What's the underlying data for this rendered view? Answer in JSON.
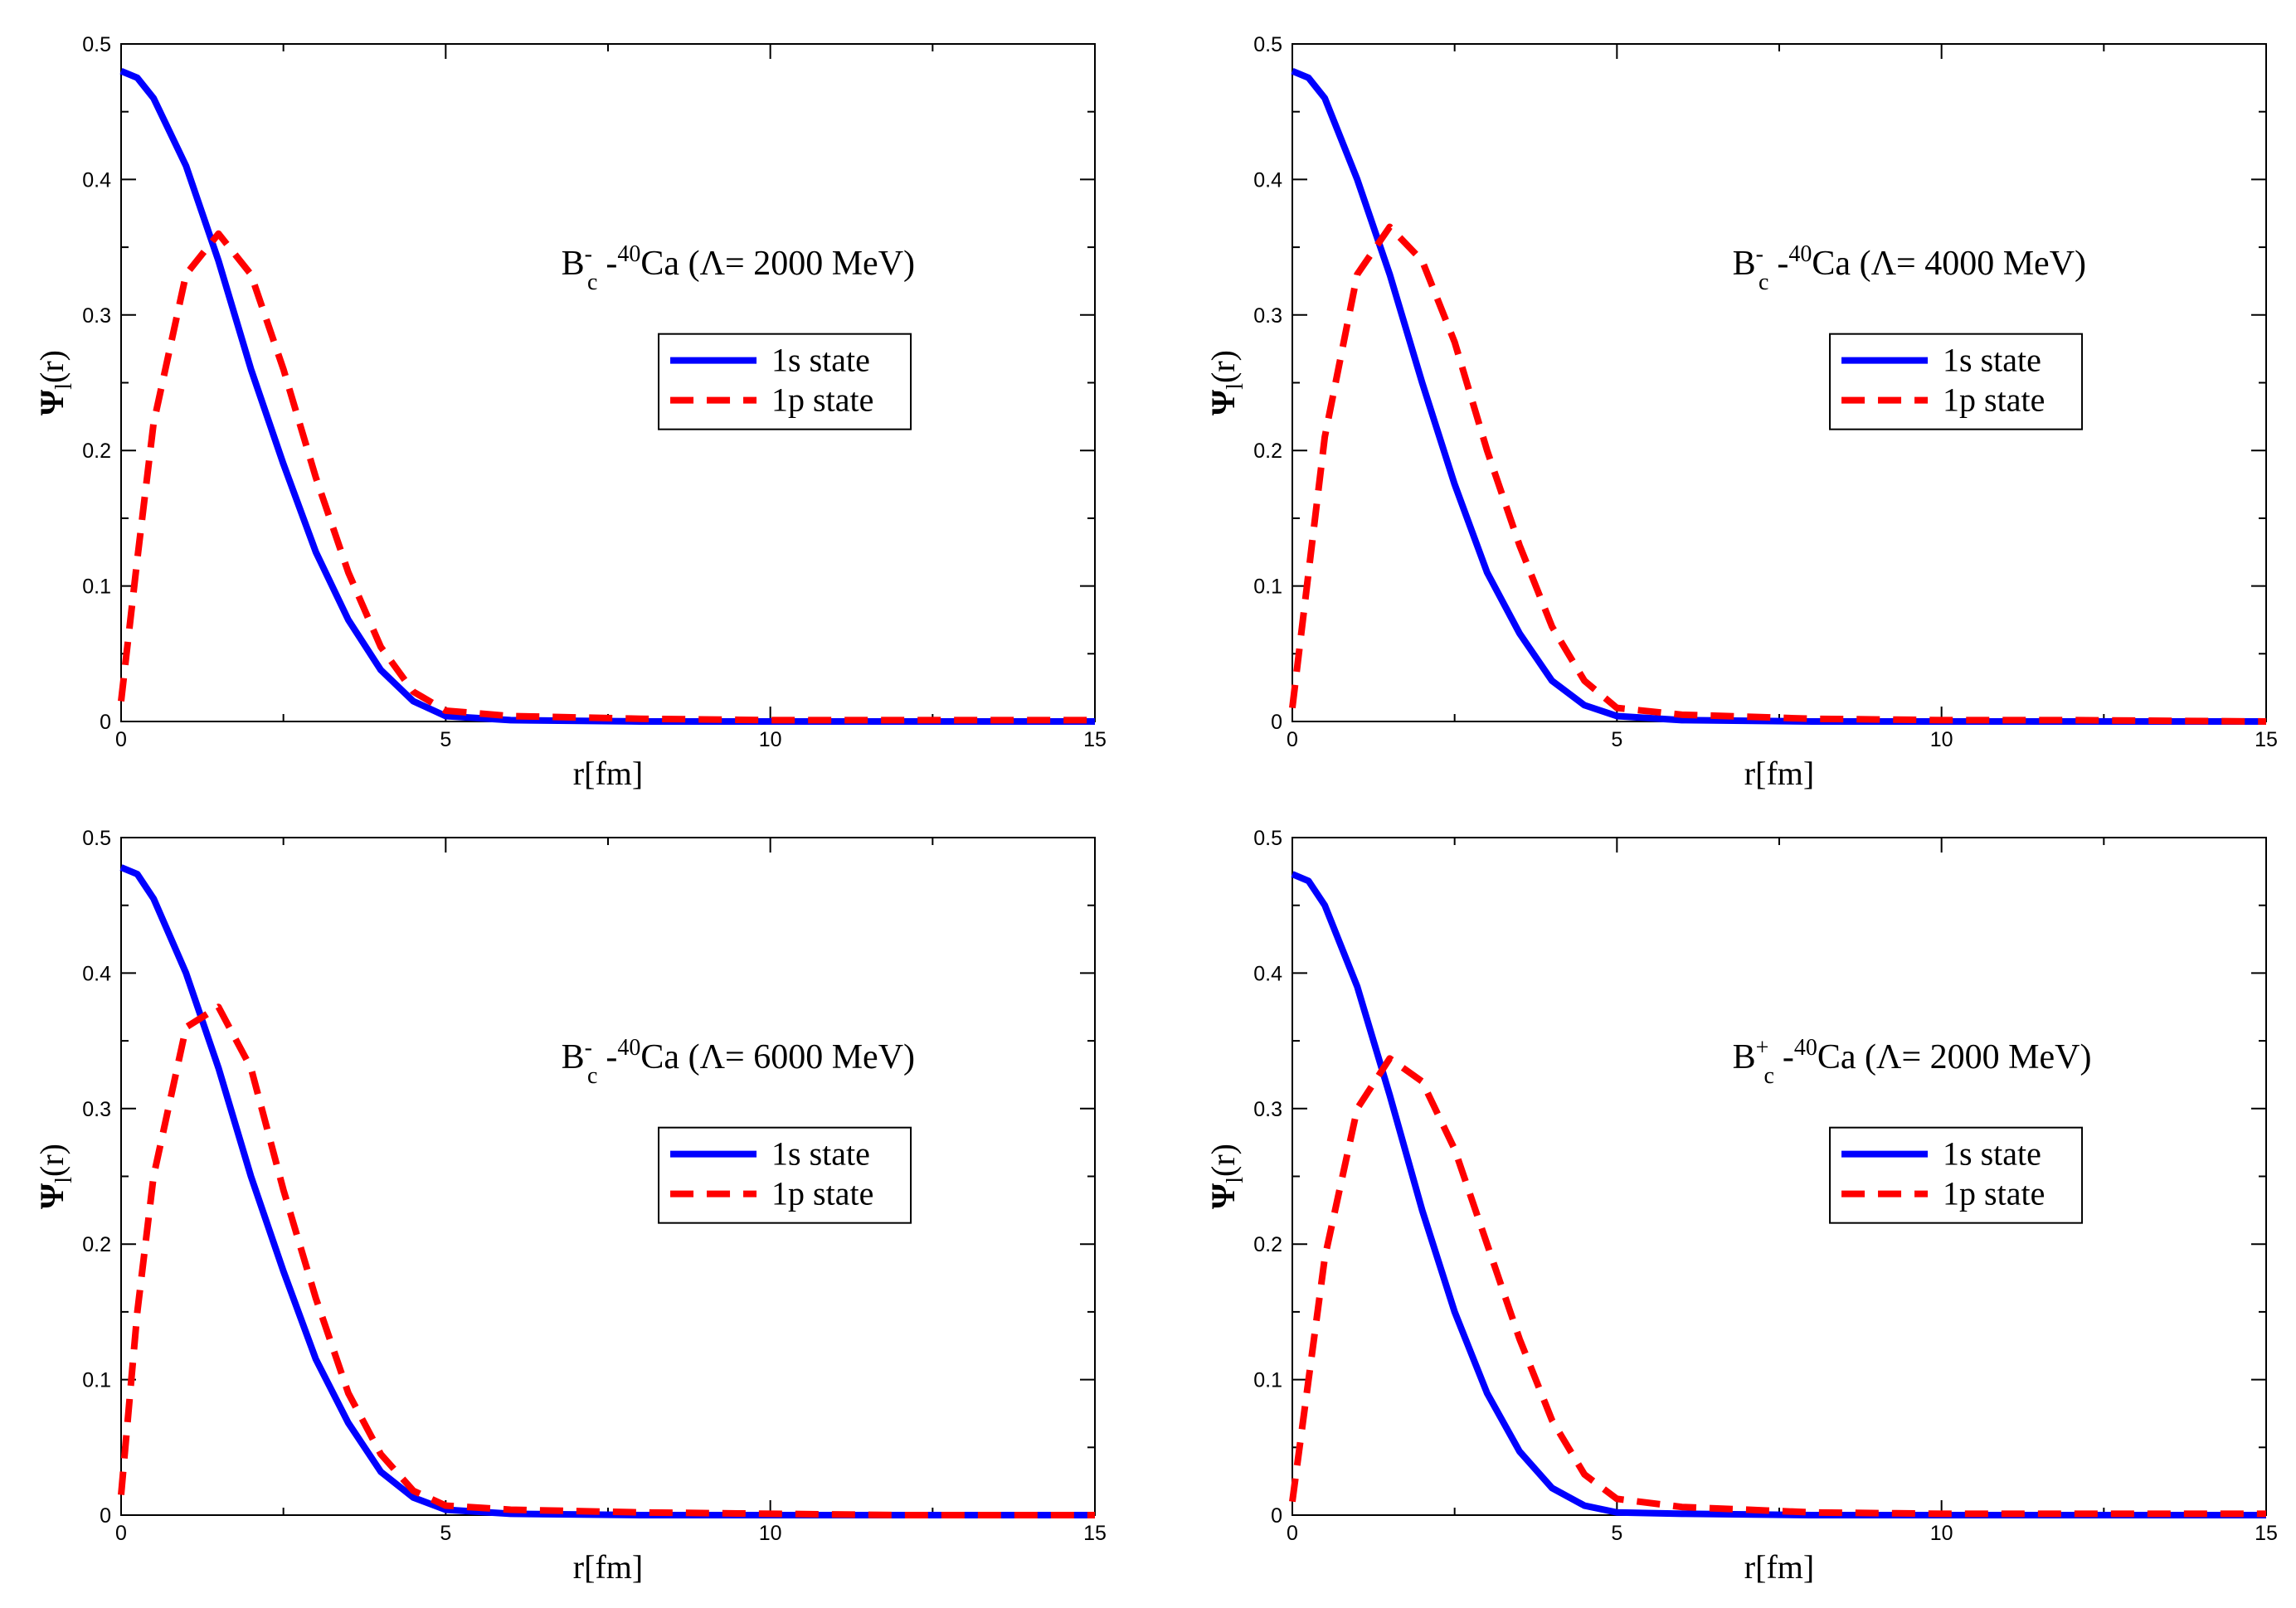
{
  "chart_data": [
    {
      "type": "line",
      "annotation": {
        "base": "B",
        "sup": "-",
        "sub": "c",
        "mid": "-",
        "iso": "40",
        "rest": "Ca (Λ= 2000 MeV)"
      },
      "xlabel": "r[fm]",
      "ylabel": {
        "main": "Ψ",
        "sub": "l",
        "rest": "(r)"
      },
      "x": [
        0,
        0.25,
        0.5,
        1,
        1.5,
        2,
        2.5,
        3,
        3.5,
        4,
        4.5,
        5,
        6,
        8,
        10,
        12,
        15
      ],
      "series": [
        {
          "name": "1s state",
          "color": "#0000ff",
          "linestyle": "solid",
          "values": [
            0.48,
            0.475,
            0.46,
            0.41,
            0.34,
            0.26,
            0.19,
            0.125,
            0.075,
            0.038,
            0.015,
            0.004,
            0.001,
            0,
            0,
            0,
            0
          ]
        },
        {
          "name": "1p state",
          "color": "#ff0000",
          "linestyle": "dashed",
          "values": [
            0.015,
            0.12,
            0.22,
            0.33,
            0.36,
            0.33,
            0.26,
            0.18,
            0.11,
            0.055,
            0.022,
            0.008,
            0.004,
            0.002,
            0.001,
            0.001,
            0.001
          ]
        }
      ],
      "xlim": [
        0,
        15
      ],
      "xticks": [
        0,
        5,
        10,
        15
      ],
      "xminorticks": [
        2.5,
        7.5,
        12.5
      ],
      "ylim": [
        0,
        0.5
      ],
      "yticks": [
        0,
        0.1,
        0.2,
        0.3,
        0.4,
        0.5
      ],
      "yminorticks": [
        0.05,
        0.15,
        0.25,
        0.35,
        0.45
      ]
    },
    {
      "type": "line",
      "annotation": {
        "base": "B",
        "sup": "-",
        "sub": "c",
        "mid": "-",
        "iso": "40",
        "rest": "Ca (Λ= 4000 MeV)"
      },
      "xlabel": "r[fm]",
      "ylabel": {
        "main": "Ψ",
        "sub": "l",
        "rest": "(r)"
      },
      "x": [
        0,
        0.25,
        0.5,
        1,
        1.5,
        2,
        2.5,
        3,
        3.5,
        4,
        4.5,
        5,
        6,
        8,
        10,
        12,
        15
      ],
      "series": [
        {
          "name": "1s state",
          "color": "#0000ff",
          "linestyle": "solid",
          "values": [
            0.48,
            0.475,
            0.46,
            0.4,
            0.33,
            0.25,
            0.175,
            0.11,
            0.065,
            0.03,
            0.012,
            0.004,
            0.001,
            0,
            0,
            0,
            0
          ]
        },
        {
          "name": "1p state",
          "color": "#ff0000",
          "linestyle": "dashed",
          "values": [
            0.01,
            0.11,
            0.21,
            0.33,
            0.365,
            0.34,
            0.28,
            0.2,
            0.13,
            0.07,
            0.03,
            0.01,
            0.005,
            0.002,
            0.001,
            0.001,
            0
          ]
        }
      ],
      "xlim": [
        0,
        15
      ],
      "xticks": [
        0,
        5,
        10,
        15
      ],
      "xminorticks": [
        2.5,
        7.5,
        12.5
      ],
      "ylim": [
        0,
        0.5
      ],
      "yticks": [
        0,
        0.1,
        0.2,
        0.3,
        0.4,
        0.5
      ],
      "yminorticks": [
        0.05,
        0.15,
        0.25,
        0.35,
        0.45
      ]
    },
    {
      "type": "line",
      "annotation": {
        "base": "B",
        "sup": "-",
        "sub": "c",
        "mid": "-",
        "iso": "40",
        "rest": "Ca (Λ= 6000 MeV)"
      },
      "xlabel": "r[fm]",
      "ylabel": {
        "main": "Ψ",
        "sub": "l",
        "rest": "(r)"
      },
      "x": [
        0,
        0.25,
        0.5,
        1,
        1.5,
        2,
        2.5,
        3,
        3.5,
        4,
        4.5,
        5,
        6,
        8,
        10,
        12,
        15
      ],
      "series": [
        {
          "name": "1s state",
          "color": "#0000ff",
          "linestyle": "solid",
          "values": [
            0.478,
            0.473,
            0.455,
            0.4,
            0.33,
            0.25,
            0.18,
            0.115,
            0.068,
            0.032,
            0.013,
            0.004,
            0.001,
            0,
            0,
            0,
            0
          ]
        },
        {
          "name": "1p state",
          "color": "#ff0000",
          "linestyle": "dashed",
          "values": [
            0.015,
            0.15,
            0.25,
            0.36,
            0.375,
            0.33,
            0.24,
            0.16,
            0.09,
            0.045,
            0.018,
            0.007,
            0.004,
            0.002,
            0.001,
            0,
            0
          ]
        }
      ],
      "xlim": [
        0,
        15
      ],
      "xticks": [
        0,
        5,
        10,
        15
      ],
      "xminorticks": [
        2.5,
        7.5,
        12.5
      ],
      "ylim": [
        0,
        0.5
      ],
      "yticks": [
        0,
        0.1,
        0.2,
        0.3,
        0.4,
        0.5
      ],
      "yminorticks": [
        0.05,
        0.15,
        0.25,
        0.35,
        0.45
      ]
    },
    {
      "type": "line",
      "annotation": {
        "base": "B",
        "sup": "+",
        "sub": "c",
        "mid": "-",
        "iso": "40",
        "rest": "Ca (Λ= 2000 MeV)"
      },
      "xlabel": "r[fm]",
      "ylabel": {
        "main": "Ψ",
        "sub": "l",
        "rest": "(r)"
      },
      "x": [
        0,
        0.25,
        0.5,
        1,
        1.5,
        2,
        2.5,
        3,
        3.5,
        4,
        4.5,
        5,
        6,
        8,
        10,
        12,
        15
      ],
      "series": [
        {
          "name": "1s state",
          "color": "#0000ff",
          "linestyle": "solid",
          "values": [
            0.473,
            0.468,
            0.45,
            0.39,
            0.31,
            0.225,
            0.15,
            0.09,
            0.047,
            0.02,
            0.007,
            0.002,
            0.001,
            0,
            0,
            0,
            0
          ]
        },
        {
          "name": "1p state",
          "color": "#ff0000",
          "linestyle": "dashed",
          "values": [
            0.01,
            0.1,
            0.19,
            0.3,
            0.337,
            0.32,
            0.27,
            0.2,
            0.13,
            0.07,
            0.03,
            0.012,
            0.006,
            0.002,
            0.001,
            0.001,
            0.001
          ]
        }
      ],
      "xlim": [
        0,
        15
      ],
      "xticks": [
        0,
        5,
        10,
        15
      ],
      "xminorticks": [
        2.5,
        7.5,
        12.5
      ],
      "ylim": [
        0,
        0.5
      ],
      "yticks": [
        0,
        0.1,
        0.2,
        0.3,
        0.4,
        0.5
      ],
      "yminorticks": [
        0.05,
        0.15,
        0.25,
        0.35,
        0.45
      ]
    }
  ]
}
